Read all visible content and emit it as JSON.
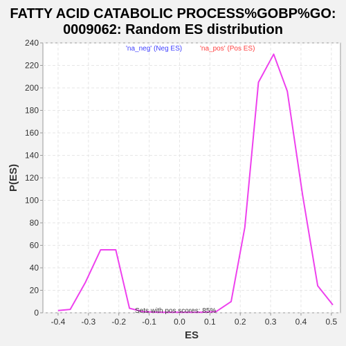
{
  "chart_data": {
    "type": "line",
    "title_line1": "FATTY ACID CATABOLIC PROCESS%GOBP%GO:",
    "title_line2": "0009062: Random ES distribution",
    "xlabel": "ES",
    "ylabel": "P(ES)",
    "xlim": [
      -0.45,
      0.53
    ],
    "ylim": [
      0,
      240
    ],
    "x_ticks": [
      -0.4,
      -0.3,
      -0.2,
      -0.1,
      0.0,
      0.1,
      0.2,
      0.3,
      0.4,
      0.5
    ],
    "x_tick_labels": [
      "-0.4",
      "-0.3",
      "-0.2",
      "-0.1",
      "0.0",
      "0.1",
      "0.2",
      "0.3",
      "0.4",
      "0.5"
    ],
    "y_ticks": [
      0,
      20,
      40,
      60,
      80,
      100,
      120,
      140,
      160,
      180,
      200,
      220,
      240
    ],
    "y_tick_labels": [
      "0",
      "20",
      "40",
      "60",
      "80",
      "100",
      "120",
      "140",
      "160",
      "180",
      "200",
      "220",
      "240"
    ],
    "grid": true,
    "legend": [
      {
        "label": "'na_neg' (Neg ES)",
        "color": "#4040ff"
      },
      {
        "label": "'na_pos' (Pos ES)",
        "color": "#ff4040"
      }
    ],
    "annotation": "Sets with pos scores: 85%",
    "series": [
      {
        "color": "#ee40ee",
        "x": [
          -0.4,
          -0.36,
          -0.31,
          -0.26,
          -0.21,
          -0.165,
          -0.12,
          -0.07,
          0.0,
          0.07,
          0.12,
          0.17,
          0.215,
          0.26,
          0.31,
          0.355,
          0.405,
          0.455,
          0.505
        ],
        "y": [
          2,
          3,
          27,
          56,
          56,
          4,
          1,
          0.5,
          0.5,
          0.5,
          1,
          10,
          76,
          205,
          230,
          197,
          105,
          24,
          7
        ]
      }
    ],
    "colors": {
      "background": "#f2f2f2",
      "plot_background": "#ffffff",
      "grid": "#e6e6e6",
      "axis": "#999999",
      "line": "#ee40ee"
    }
  }
}
